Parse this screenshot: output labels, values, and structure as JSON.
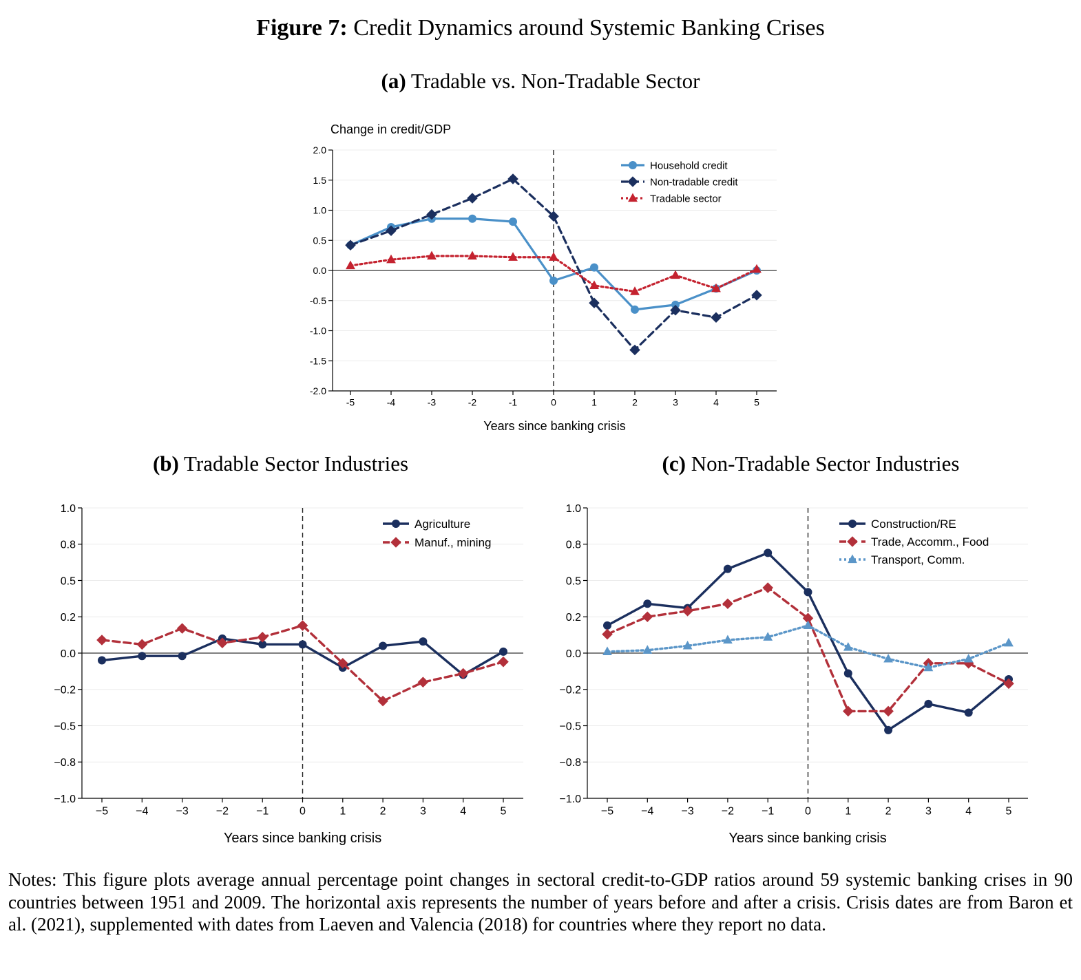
{
  "figure": {
    "label": "Figure 7:",
    "title": "Credit Dynamics around Systemic Banking Crises"
  },
  "notes": "Notes: This figure plots average annual percentage point changes in sectoral credit-to-GDP ratios around 59 systemic banking crises in 90 countries between 1951 and 2009. The horizontal axis represents the number of years before and after a crisis. Crisis dates are from Baron et al. (2021), supplemented with dates from Laeven and Valencia (2018) for countries where they report no data.",
  "chart_data": [
    {
      "id": "a",
      "type": "line",
      "panel_label": "(a)",
      "title": "Tradable vs. Non-Tradable Sector",
      "ylabel": "Change in credit/GDP",
      "xlabel": "Years since banking crisis",
      "ylim": [
        -2.0,
        2.0
      ],
      "yticks": [
        2.0,
        1.5,
        1.0,
        0.5,
        0.0,
        -0.5,
        -1.0,
        -1.5,
        -2.0
      ],
      "ytick_labels": [
        "2.0",
        "1.5",
        "1.0",
        "0.5",
        "0.0",
        "-0.5",
        "-1.0",
        "-1.5",
        "-2.0"
      ],
      "x": [
        -5,
        -4,
        -3,
        -2,
        -1,
        0,
        1,
        2,
        3,
        4,
        5
      ],
      "xtick_labels": [
        "-5",
        "-4",
        "-3",
        "-2",
        "-1",
        "0",
        "1",
        "2",
        "3",
        "4",
        "5"
      ],
      "grid": true,
      "legend_position": "top-right",
      "series": [
        {
          "name": "Household credit",
          "color": "#4a90c8",
          "marker": "circle",
          "dash": "solid",
          "values": [
            0.42,
            0.72,
            0.86,
            0.86,
            0.81,
            -0.17,
            0.05,
            -0.65,
            -0.57,
            -0.3,
            0.0
          ]
        },
        {
          "name": "Non-tradable credit",
          "color": "#1b2f5e",
          "marker": "diamond",
          "dash": "dashed",
          "values": [
            0.42,
            0.66,
            0.93,
            1.2,
            1.52,
            0.9,
            -0.54,
            -1.32,
            -0.66,
            -0.78,
            -0.41
          ]
        },
        {
          "name": "Tradable sector",
          "color": "#c4222f",
          "marker": "triangle",
          "dash": "dotted",
          "values": [
            0.08,
            0.18,
            0.24,
            0.24,
            0.22,
            0.22,
            -0.25,
            -0.35,
            -0.08,
            -0.3,
            0.02
          ]
        }
      ]
    },
    {
      "id": "b",
      "type": "line",
      "panel_label": "(b)",
      "title": "Tradable Sector Industries",
      "ylabel": "",
      "xlabel": "Years since banking crisis",
      "ylim": [
        -1.0,
        1.0
      ],
      "yticks": [
        1.0,
        0.75,
        0.5,
        0.25,
        0.0,
        -0.25,
        -0.5,
        -0.75,
        -1.0
      ],
      "ytick_labels": [
        "1.0",
        "0.8",
        "0.5",
        "0.2",
        "0.0",
        "−0.2",
        "−0.5",
        "−0.8",
        "−1.0"
      ],
      "x": [
        -5,
        -4,
        -3,
        -2,
        -1,
        0,
        1,
        2,
        3,
        4,
        5
      ],
      "xtick_labels": [
        "−5",
        "−4",
        "−3",
        "−2",
        "−1",
        "0",
        "1",
        "2",
        "3",
        "4",
        "5"
      ],
      "grid": true,
      "legend_position": "top-right",
      "series": [
        {
          "name": "Agriculture",
          "color": "#1b2f5e",
          "marker": "circle",
          "dash": "solid",
          "values": [
            -0.05,
            -0.02,
            -0.02,
            0.1,
            0.06,
            0.06,
            -0.1,
            0.05,
            0.08,
            -0.15,
            0.01
          ]
        },
        {
          "name": "Manuf., mining",
          "color": "#b2303a",
          "marker": "diamond",
          "dash": "dashed",
          "values": [
            0.09,
            0.06,
            0.17,
            0.07,
            0.11,
            0.19,
            -0.07,
            -0.33,
            -0.2,
            -0.14,
            -0.06
          ]
        }
      ]
    },
    {
      "id": "c",
      "type": "line",
      "panel_label": "(c)",
      "title": "Non-Tradable Sector Industries",
      "ylabel": "",
      "xlabel": "Years since banking crisis",
      "ylim": [
        -1.0,
        1.0
      ],
      "yticks": [
        1.0,
        0.75,
        0.5,
        0.25,
        0.0,
        -0.25,
        -0.5,
        -0.75,
        -1.0
      ],
      "ytick_labels": [
        "1.0",
        "0.8",
        "0.5",
        "0.2",
        "0.0",
        "−0.2",
        "−0.5",
        "−0.8",
        "−1.0"
      ],
      "x": [
        -5,
        -4,
        -3,
        -2,
        -1,
        0,
        1,
        2,
        3,
        4,
        5
      ],
      "xtick_labels": [
        "−5",
        "−4",
        "−3",
        "−2",
        "−1",
        "0",
        "1",
        "2",
        "3",
        "4",
        "5"
      ],
      "grid": true,
      "legend_position": "top-right",
      "series": [
        {
          "name": "Construction/RE",
          "color": "#1b2f5e",
          "marker": "circle",
          "dash": "solid",
          "values": [
            0.19,
            0.34,
            0.31,
            0.58,
            0.69,
            0.42,
            -0.14,
            -0.53,
            -0.35,
            -0.41,
            -0.18
          ]
        },
        {
          "name": "Trade, Accomm., Food",
          "color": "#b2303a",
          "marker": "diamond",
          "dash": "dashed",
          "values": [
            0.13,
            0.25,
            0.29,
            0.34,
            0.45,
            0.24,
            -0.4,
            -0.4,
            -0.07,
            -0.07,
            -0.21
          ]
        },
        {
          "name": "Transport, Comm.",
          "color": "#5b96c8",
          "marker": "triangle",
          "dash": "dotted",
          "values": [
            0.01,
            0.02,
            0.05,
            0.09,
            0.11,
            0.19,
            0.04,
            -0.04,
            -0.1,
            -0.04,
            0.07
          ]
        }
      ]
    }
  ]
}
